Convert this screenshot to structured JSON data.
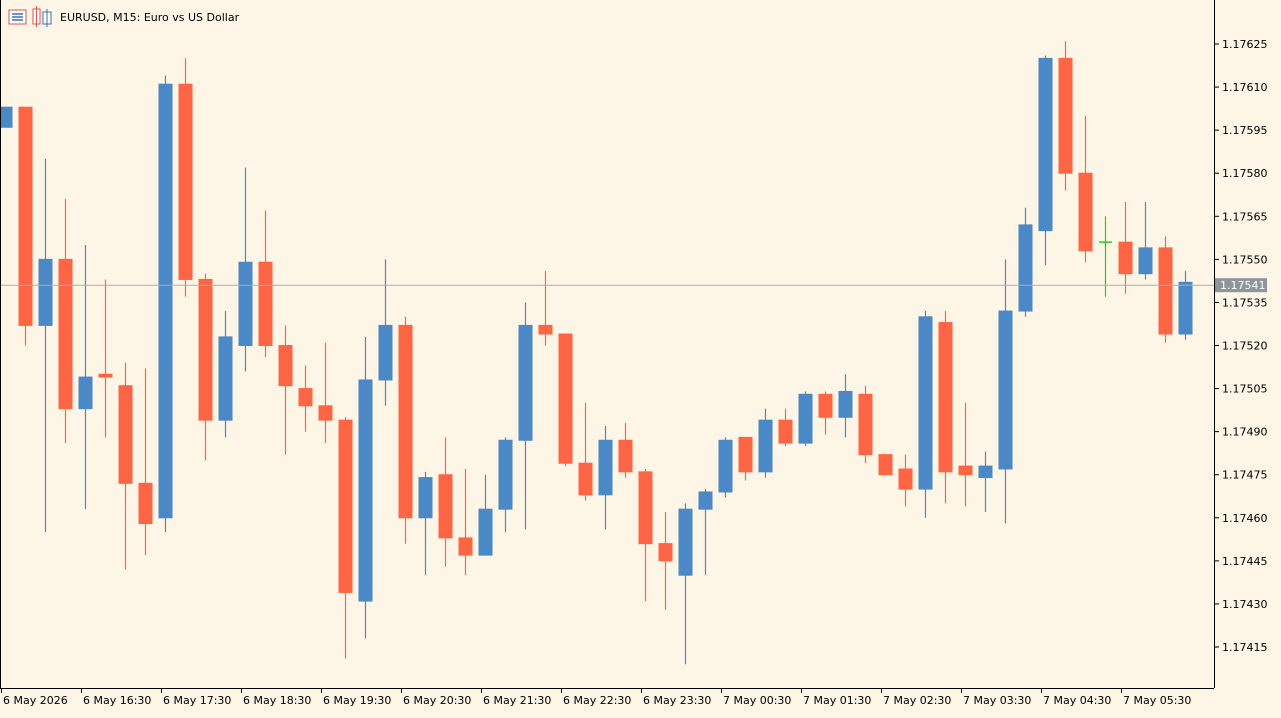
{
  "header": {
    "title": "EURUSD, M15:  Euro vs US Dollar",
    "icons": [
      "chart-window-icon",
      "toolbox-icon"
    ]
  },
  "colors": {
    "background": "#fdf5e6",
    "bull": "#4a88c7",
    "bear": "#fe6544",
    "doji": "#20d020",
    "axis": "#000000",
    "price_line": "#a9b0b5",
    "price_label_bg": "#8e969c",
    "price_label_text": "#ffffff"
  },
  "chart_data": {
    "type": "candlestick",
    "symbol": "EURUSD",
    "timeframe": "M15",
    "description": "Euro vs US Dollar",
    "ylim": [
      1.1741,
      1.17635
    ],
    "grid": false,
    "y_ticks": [
      "1.17625",
      "1.17610",
      "1.17595",
      "1.17580",
      "1.17565",
      "1.17550",
      "1.17535",
      "1.17520",
      "1.17505",
      "1.17490",
      "1.17475",
      "1.17460",
      "1.17445",
      "1.17430",
      "1.17415"
    ],
    "x_labels": [
      "6 May 2026",
      "6 May 16:30",
      "6 May 17:30",
      "6 May 18:30",
      "6 May 19:30",
      "6 May 20:30",
      "6 May 21:30",
      "6 May 22:30",
      "6 May 23:30",
      "7 May 00:30",
      "7 May 01:30",
      "7 May 02:30",
      "7 May 03:30",
      "7 May 04:30",
      "7 May 05:30"
    ],
    "current_price": "1.17541",
    "candles": [
      {
        "o": 1.17596,
        "h": 1.17603,
        "l": 1.17596,
        "c": 1.17603
      },
      {
        "o": 1.17603,
        "h": 1.17603,
        "l": 1.1752,
        "c": 1.17527
      },
      {
        "o": 1.17527,
        "h": 1.17585,
        "l": 1.17455,
        "c": 1.1755
      },
      {
        "o": 1.1755,
        "h": 1.17571,
        "l": 1.17486,
        "c": 1.17498
      },
      {
        "o": 1.17498,
        "h": 1.17555,
        "l": 1.17463,
        "c": 1.17509
      },
      {
        "o": 1.1751,
        "h": 1.17543,
        "l": 1.17488,
        "c": 1.17509
      },
      {
        "o": 1.17506,
        "h": 1.17514,
        "l": 1.17442,
        "c": 1.17472
      },
      {
        "o": 1.17472,
        "h": 1.17512,
        "l": 1.17447,
        "c": 1.17458
      },
      {
        "o": 1.1746,
        "h": 1.17614,
        "l": 1.17455,
        "c": 1.17611
      },
      {
        "o": 1.17611,
        "h": 1.1762,
        "l": 1.17537,
        "c": 1.17543
      },
      {
        "o": 1.17543,
        "h": 1.17545,
        "l": 1.1748,
        "c": 1.17494
      },
      {
        "o": 1.17494,
        "h": 1.17532,
        "l": 1.17488,
        "c": 1.17523
      },
      {
        "o": 1.1752,
        "h": 1.17582,
        "l": 1.17511,
        "c": 1.17549
      },
      {
        "o": 1.17549,
        "h": 1.17567,
        "l": 1.17516,
        "c": 1.1752
      },
      {
        "o": 1.1752,
        "h": 1.17527,
        "l": 1.17482,
        "c": 1.17506
      },
      {
        "o": 1.17505,
        "h": 1.17513,
        "l": 1.1749,
        "c": 1.17499
      },
      {
        "o": 1.17499,
        "h": 1.17521,
        "l": 1.17486,
        "c": 1.17494
      },
      {
        "o": 1.17494,
        "h": 1.17495,
        "l": 1.17411,
        "c": 1.17434
      },
      {
        "o": 1.17431,
        "h": 1.17523,
        "l": 1.17418,
        "c": 1.17508
      },
      {
        "o": 1.17508,
        "h": 1.1755,
        "l": 1.17499,
        "c": 1.17527
      },
      {
        "o": 1.17527,
        "h": 1.1753,
        "l": 1.17451,
        "c": 1.1746
      },
      {
        "o": 1.1746,
        "h": 1.17476,
        "l": 1.1744,
        "c": 1.17474
      },
      {
        "o": 1.17475,
        "h": 1.17488,
        "l": 1.17443,
        "c": 1.17453
      },
      {
        "o": 1.17453,
        "h": 1.17477,
        "l": 1.1744,
        "c": 1.17447
      },
      {
        "o": 1.17447,
        "h": 1.17475,
        "l": 1.17447,
        "c": 1.17463
      },
      {
        "o": 1.17463,
        "h": 1.17488,
        "l": 1.17455,
        "c": 1.17487
      },
      {
        "o": 1.17487,
        "h": 1.17535,
        "l": 1.17456,
        "c": 1.17527
      },
      {
        "o": 1.17527,
        "h": 1.17546,
        "l": 1.1752,
        "c": 1.17524
      },
      {
        "o": 1.17524,
        "h": 1.17524,
        "l": 1.17478,
        "c": 1.17479
      },
      {
        "o": 1.17479,
        "h": 1.175,
        "l": 1.17466,
        "c": 1.17468
      },
      {
        "o": 1.17468,
        "h": 1.17492,
        "l": 1.17456,
        "c": 1.17487
      },
      {
        "o": 1.17487,
        "h": 1.17493,
        "l": 1.17474,
        "c": 1.17476
      },
      {
        "o": 1.17476,
        "h": 1.17477,
        "l": 1.17431,
        "c": 1.17451
      },
      {
        "o": 1.17451,
        "h": 1.17462,
        "l": 1.17428,
        "c": 1.17445
      },
      {
        "o": 1.1744,
        "h": 1.17465,
        "l": 1.17409,
        "c": 1.17463
      },
      {
        "o": 1.17463,
        "h": 1.1747,
        "l": 1.1744,
        "c": 1.17469
      },
      {
        "o": 1.17469,
        "h": 1.17488,
        "l": 1.17467,
        "c": 1.17487
      },
      {
        "o": 1.17488,
        "h": 1.17488,
        "l": 1.17473,
        "c": 1.17476
      },
      {
        "o": 1.17476,
        "h": 1.17498,
        "l": 1.17474,
        "c": 1.17494
      },
      {
        "o": 1.17494,
        "h": 1.17498,
        "l": 1.17485,
        "c": 1.17486
      },
      {
        "o": 1.17486,
        "h": 1.17504,
        "l": 1.17485,
        "c": 1.17503
      },
      {
        "o": 1.17503,
        "h": 1.17504,
        "l": 1.17489,
        "c": 1.17495
      },
      {
        "o": 1.17495,
        "h": 1.1751,
        "l": 1.17488,
        "c": 1.17504
      },
      {
        "o": 1.17503,
        "h": 1.17506,
        "l": 1.17479,
        "c": 1.17482
      },
      {
        "o": 1.17482,
        "h": 1.17482,
        "l": 1.17475,
        "c": 1.17475
      },
      {
        "o": 1.17477,
        "h": 1.17482,
        "l": 1.17464,
        "c": 1.1747
      },
      {
        "o": 1.1747,
        "h": 1.17532,
        "l": 1.1746,
        "c": 1.1753
      },
      {
        "o": 1.17528,
        "h": 1.17532,
        "l": 1.17465,
        "c": 1.17476
      },
      {
        "o": 1.17478,
        "h": 1.175,
        "l": 1.17464,
        "c": 1.17475
      },
      {
        "o": 1.17474,
        "h": 1.17483,
        "l": 1.17462,
        "c": 1.17478
      },
      {
        "o": 1.17477,
        "h": 1.1755,
        "l": 1.17458,
        "c": 1.17532
      },
      {
        "o": 1.17532,
        "h": 1.17568,
        "l": 1.1753,
        "c": 1.17562
      },
      {
        "o": 1.1756,
        "h": 1.17621,
        "l": 1.17548,
        "c": 1.1762
      },
      {
        "o": 1.1762,
        "h": 1.17626,
        "l": 1.17574,
        "c": 1.1758
      },
      {
        "o": 1.1758,
        "h": 1.176,
        "l": 1.17549,
        "c": 1.17553
      },
      {
        "o": 1.17556,
        "h": 1.17565,
        "l": 1.17537,
        "c": 1.17556
      },
      {
        "o": 1.17556,
        "h": 1.1757,
        "l": 1.17538,
        "c": 1.17545
      },
      {
        "o": 1.17545,
        "h": 1.1757,
        "l": 1.17543,
        "c": 1.17554
      },
      {
        "o": 1.17554,
        "h": 1.17558,
        "l": 1.17521,
        "c": 1.17524
      },
      {
        "o": 1.17524,
        "h": 1.17546,
        "l": 1.17522,
        "c": 1.17542
      }
    ]
  }
}
